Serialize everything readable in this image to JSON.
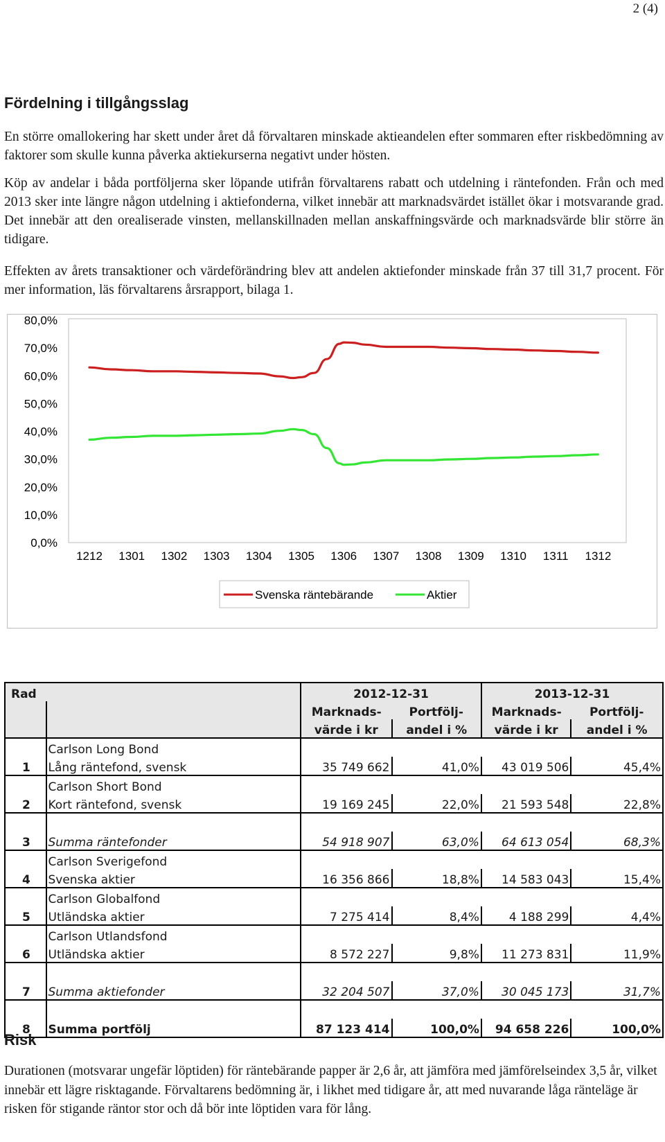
{
  "page_number": "2 (4)",
  "section_title": "Fördelning i tillgångsslag",
  "paragraphs": [
    "En större omallokering har skett under året då förvaltaren minskade aktieandelen efter sommaren efter riskbedömning av faktorer som skulle kunna påverka aktiekurserna negativt under hösten.",
    "Köp av andelar i båda portföljerna sker löpande utifrån förvaltarens rabatt och utdelning i räntefonden. Från och med 2013 sker inte längre någon utdelning i aktiefonderna, vilket innebär att marknadsvärdet istället ökar i motsvarande grad. Det innebär att den orealiserade vinsten, mellanskillnaden mellan anskaffningsvärde och marknadsvärde blir större än tidigare.",
    "Effekten av årets transaktioner och värdeförändring blev att andelen aktiefonder minskade från 37 till 31,7 procent. För mer information, läs förvaltarens årsrapport, bilaga 1."
  ],
  "chart_data": {
    "type": "line",
    "categories": [
      "1212",
      "1301",
      "1302",
      "1303",
      "1304",
      "1305",
      "1306",
      "1307",
      "1308",
      "1309",
      "1310",
      "1311",
      "1312"
    ],
    "y_ticks": [
      "80,0%",
      "70,0%",
      "60,0%",
      "50,0%",
      "40,0%",
      "30,0%",
      "20,0%",
      "10,0%",
      "0,0%"
    ],
    "ylim": [
      0,
      80
    ],
    "grid": false,
    "legend_position": "bottom",
    "series": [
      {
        "name": "Svenska räntebärande",
        "color": "#cc1f1f",
        "x": [
          0,
          0.5,
          1,
          1.5,
          2,
          2.5,
          3,
          3.5,
          4,
          4.5,
          4.8,
          5,
          5.3,
          5.6,
          5.9,
          6.0,
          6.2,
          6.5,
          7,
          7.5,
          8,
          8.5,
          9,
          9.5,
          10,
          10.5,
          11,
          11.5,
          12
        ],
        "values": [
          63.0,
          62.3,
          62.0,
          61.6,
          61.6,
          61.4,
          61.2,
          61.0,
          60.8,
          59.8,
          59.2,
          59.5,
          61.0,
          66.0,
          71.5,
          72.0,
          71.9,
          71.2,
          70.4,
          70.4,
          70.4,
          70.1,
          69.9,
          69.6,
          69.4,
          69.1,
          68.9,
          68.6,
          68.3
        ]
      },
      {
        "name": "Aktier",
        "color": "#33e633",
        "x": [
          0,
          0.5,
          1,
          1.5,
          2,
          2.5,
          3,
          3.5,
          4,
          4.5,
          4.8,
          5,
          5.3,
          5.6,
          5.9,
          6.0,
          6.2,
          6.5,
          7,
          7.5,
          8,
          8.5,
          9,
          9.5,
          10,
          10.5,
          11,
          11.5,
          12
        ],
        "values": [
          37.0,
          37.7,
          38.0,
          38.4,
          38.4,
          38.6,
          38.8,
          39.0,
          39.2,
          40.2,
          40.8,
          40.5,
          39.0,
          34.0,
          28.5,
          28.0,
          28.1,
          28.8,
          29.6,
          29.6,
          29.6,
          29.9,
          30.1,
          30.4,
          30.6,
          30.9,
          31.1,
          31.4,
          31.7
        ]
      }
    ]
  },
  "table": {
    "header": {
      "rad": "Rad",
      "period1": "2012-12-31",
      "period2": "2013-12-31",
      "mv_line1": "Marknads-",
      "mv_line2": "värde i kr",
      "pa_line1": "Portfölj-",
      "pa_line2": "andel i %"
    },
    "rows": [
      {
        "rad": "1",
        "fund": "Carlson Long Bond",
        "category": "Lång räntefond, svensk",
        "mv2012": "35 749 662",
        "pct2012": "41,0%",
        "mv2013": "43 019 506",
        "pct2013": "45,4%"
      },
      {
        "rad": "2",
        "fund": "Carlson Short Bond",
        "category": "Kort räntefond, svensk",
        "mv2012": "19 169 245",
        "pct2012": "22,0%",
        "mv2013": "21 593 548",
        "pct2013": "22,8%"
      },
      {
        "rad": "3",
        "label": "Summa räntefonder",
        "mv2012": "54 918 907",
        "pct2012": "63,0%",
        "mv2013": "64 613 054",
        "pct2013": "68,3%"
      },
      {
        "rad": "4",
        "fund": "Carlson Sverigefond",
        "category": "Svenska aktier",
        "mv2012": "16 356 866",
        "pct2012": "18,8%",
        "mv2013": "14 583 043",
        "pct2013": "15,4%"
      },
      {
        "rad": "5",
        "fund": "Carlson Globalfond",
        "category": "Utländska aktier",
        "mv2012": "7 275 414",
        "pct2012": "8,4%",
        "mv2013": "4 188 299",
        "pct2013": "4,4%"
      },
      {
        "rad": "6",
        "fund": "Carlson Utlandsfond",
        "category": "Utländska aktier",
        "mv2012": "8 572 227",
        "pct2012": "9,8%",
        "mv2013": "11 273 831",
        "pct2013": "11,9%"
      },
      {
        "rad": "7",
        "label": "Summa aktiefonder",
        "mv2012": "32 204 507",
        "pct2012": "37,0%",
        "mv2013": "30 045 173",
        "pct2013": "31,7%"
      },
      {
        "rad": "8",
        "label": "Summa portfölj",
        "mv2012": "87 123 414",
        "pct2012": "100,0%",
        "mv2013": "94 658 226",
        "pct2013": "100,0%"
      }
    ]
  },
  "risk_title": "Risk",
  "risk_paragraph": "Durationen (motsvarar ungefär löptiden) för räntebärande papper är 2,6 år, att jämföra med jämförelseindex 3,5 år, vilket innebär ett lägre risktagande. Förvaltarens bedömning är, i likhet med tidigare år, att med nuvarande låga ränteläge är risken för stigande räntor stor och då bör inte löptiden vara för lång."
}
